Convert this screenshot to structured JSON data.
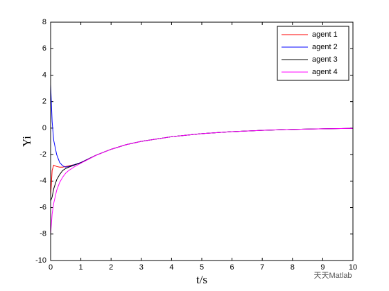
{
  "chart_data": {
    "type": "line",
    "xlabel": "t/s",
    "ylabel": "Yi",
    "x": [
      0,
      0.05,
      0.1,
      0.2,
      0.3,
      0.4,
      0.5,
      0.6,
      0.8,
      1,
      1.5,
      2,
      2.5,
      3,
      4,
      5,
      6,
      7,
      8,
      9,
      10
    ],
    "series": [
      {
        "name": "agent 1",
        "color": "#ff0000",
        "values": [
          -5.2,
          -3.2,
          -2.8,
          -2.9,
          -2.95,
          -2.95,
          -2.9,
          -2.85,
          -2.75,
          -2.6,
          -2.05,
          -1.6,
          -1.25,
          -1.0,
          -0.65,
          -0.42,
          -0.27,
          -0.17,
          -0.1,
          -0.05,
          -0.02
        ]
      },
      {
        "name": "agent 2",
        "color": "#0000ff",
        "values": [
          3.3,
          0.5,
          -0.9,
          -2.0,
          -2.6,
          -2.85,
          -2.95,
          -2.9,
          -2.75,
          -2.6,
          -2.05,
          -1.6,
          -1.25,
          -1.0,
          -0.65,
          -0.42,
          -0.27,
          -0.17,
          -0.1,
          -0.05,
          -0.02
        ]
      },
      {
        "name": "agent 3",
        "color": "#000000",
        "values": [
          -5.5,
          -5.2,
          -4.6,
          -3.9,
          -3.5,
          -3.2,
          -3.05,
          -2.95,
          -2.78,
          -2.62,
          -2.05,
          -1.6,
          -1.25,
          -1.0,
          -0.65,
          -0.42,
          -0.27,
          -0.17,
          -0.1,
          -0.05,
          -0.02
        ]
      },
      {
        "name": "agent 4",
        "color": "#ff00ff",
        "values": [
          -8.0,
          -6.5,
          -5.7,
          -4.7,
          -4.1,
          -3.7,
          -3.4,
          -3.2,
          -2.9,
          -2.65,
          -2.06,
          -1.6,
          -1.25,
          -1.0,
          -0.65,
          -0.42,
          -0.27,
          -0.17,
          -0.1,
          -0.05,
          -0.02
        ]
      }
    ],
    "xlim": [
      0,
      10
    ],
    "xticks": [
      0,
      1,
      2,
      3,
      4,
      5,
      6,
      7,
      8,
      9,
      10
    ],
    "ylim": [
      -10,
      8
    ],
    "yticks": [
      -10,
      -8,
      -6,
      -4,
      -2,
      0,
      2,
      4,
      6,
      8
    ],
    "grid": false,
    "legend": "upper right",
    "watermark": "天天Matlab"
  }
}
